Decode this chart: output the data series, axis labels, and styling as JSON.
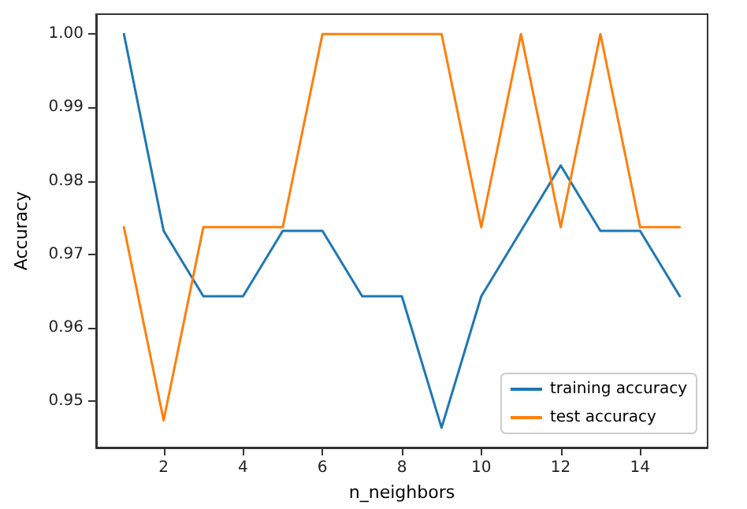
{
  "chart_data": {
    "type": "line",
    "xlabel": "n_neighbors",
    "ylabel": "Accuracy",
    "x": [
      1,
      2,
      3,
      4,
      5,
      6,
      7,
      8,
      9,
      10,
      11,
      12,
      13,
      14,
      15
    ],
    "series": [
      {
        "name": "training accuracy",
        "color": "#1f77b4",
        "values": [
          1.0,
          0.9732,
          0.9643,
          0.9643,
          0.9732,
          0.9732,
          0.9643,
          0.9643,
          0.9464,
          0.9643,
          0.9732,
          0.9821,
          0.9732,
          0.9732,
          0.9643
        ]
      },
      {
        "name": "test accuracy",
        "color": "#ff7f0e",
        "values": [
          0.9737,
          0.9474,
          0.9737,
          0.9737,
          0.9737,
          1.0,
          1.0,
          1.0,
          1.0,
          0.9737,
          1.0,
          0.9737,
          1.0,
          0.9737,
          0.9737
        ]
      }
    ],
    "xlim": [
      0.3,
      15.7
    ],
    "xticks": [
      2,
      4,
      6,
      8,
      10,
      12,
      14
    ],
    "ylim": [
      0.9437,
      1.0027
    ],
    "yticks": [
      {
        "value": 0.95,
        "label": "0.95"
      },
      {
        "value": 0.96,
        "label": "0.96"
      },
      {
        "value": 0.97,
        "label": "0.97"
      },
      {
        "value": 0.98,
        "label": "0.98"
      },
      {
        "value": 0.99,
        "label": "0.99"
      },
      {
        "value": 1.0,
        "label": "1.00"
      }
    ],
    "grid": false,
    "legend": "bottom right",
    "marker": "none",
    "line_style": "solid"
  }
}
